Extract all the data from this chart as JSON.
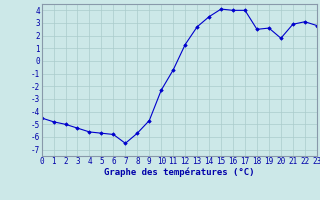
{
  "x": [
    0,
    1,
    2,
    3,
    4,
    5,
    6,
    7,
    8,
    9,
    10,
    11,
    12,
    13,
    14,
    15,
    16,
    17,
    18,
    19,
    20,
    21,
    22,
    23
  ],
  "y": [
    -4.5,
    -4.8,
    -5.0,
    -5.3,
    -5.6,
    -5.7,
    -5.8,
    -6.5,
    -5.7,
    -4.7,
    -2.3,
    -0.7,
    1.3,
    2.7,
    3.5,
    4.1,
    4.0,
    4.0,
    2.5,
    2.6,
    1.8,
    2.9,
    3.1,
    2.8
  ],
  "line_color": "#0000cc",
  "marker": "D",
  "marker_size": 1.8,
  "bg_color": "#cce8e8",
  "grid_major_color": "#aacccc",
  "grid_minor_color": "#bbdddd",
  "xlabel": "Graphe des températures (°C)",
  "yticks": [
    -7,
    -6,
    -5,
    -4,
    -3,
    -2,
    -1,
    0,
    1,
    2,
    3,
    4
  ],
  "xtick_labels": [
    "0",
    "1",
    "2",
    "3",
    "4",
    "5",
    "6",
    "7",
    "8",
    "9",
    "10",
    "11",
    "12",
    "13",
    "14",
    "15",
    "16",
    "17",
    "18",
    "19",
    "20",
    "21",
    "22",
    "23"
  ],
  "xlim": [
    0,
    23
  ],
  "ylim": [
    -7.5,
    4.5
  ],
  "tick_fontsize": 5.5,
  "xlabel_fontsize": 6.5
}
